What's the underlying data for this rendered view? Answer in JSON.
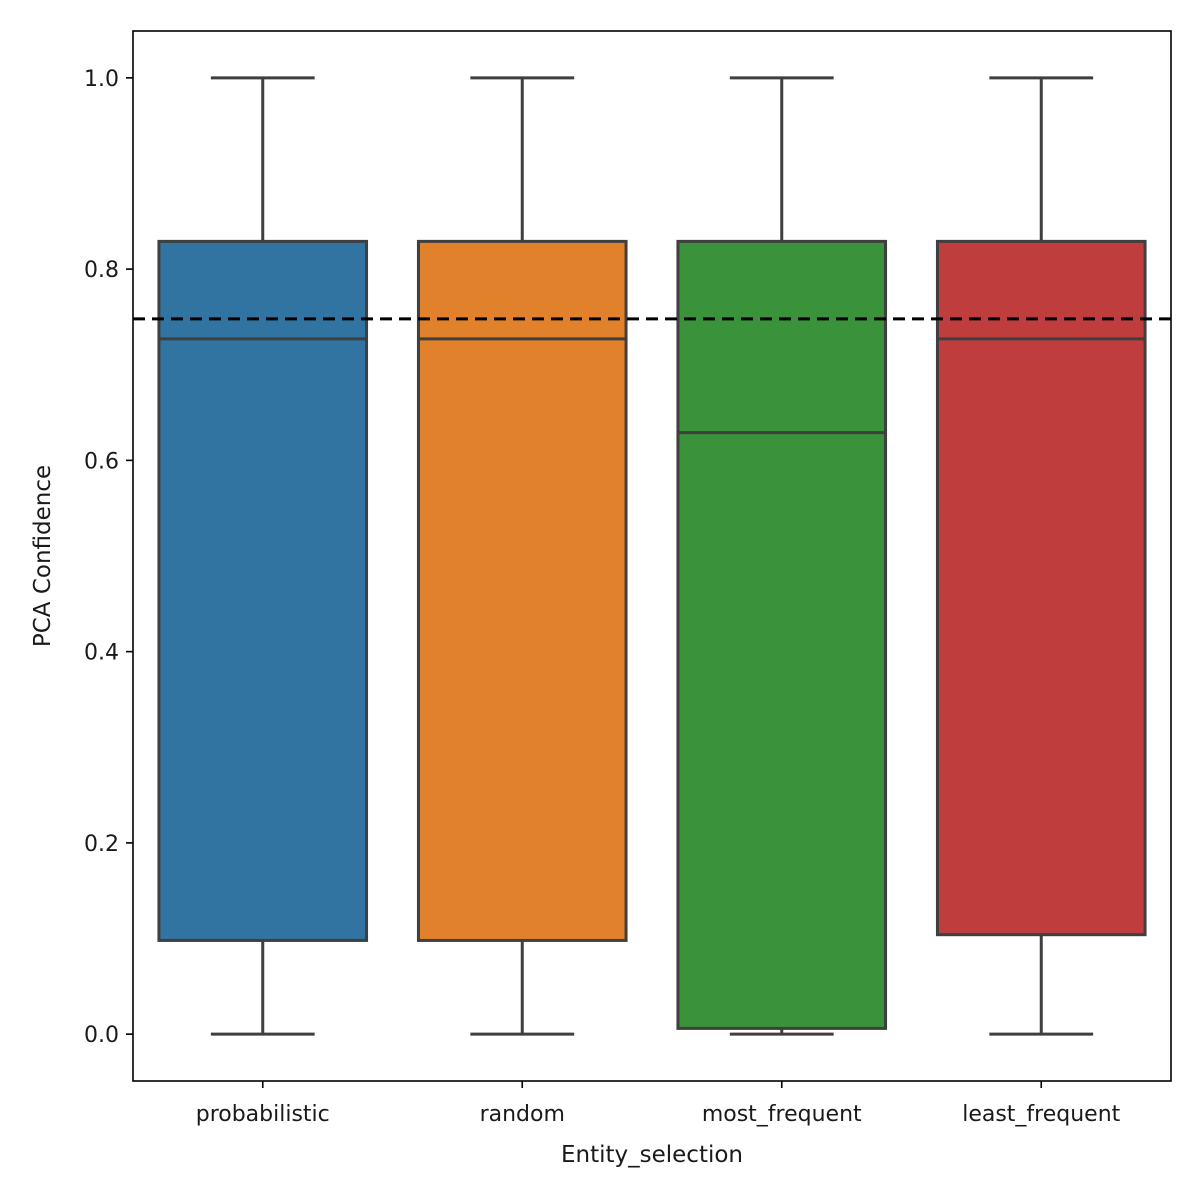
{
  "chart_data": {
    "type": "box",
    "title": "",
    "xlabel": "Entity_selection",
    "ylabel": "PCA Confidence",
    "categories": [
      "probabilistic",
      "random",
      "most_frequent",
      "least_frequent"
    ],
    "colors": [
      "#3274a1",
      "#e1812c",
      "#3a923a",
      "#c03d3e"
    ],
    "boxes": [
      {
        "name": "probabilistic",
        "whisker_low": 0.0,
        "q1": 0.098,
        "median": 0.727,
        "q3": 0.829,
        "whisker_high": 1.0
      },
      {
        "name": "random",
        "whisker_low": 0.0,
        "q1": 0.098,
        "median": 0.727,
        "q3": 0.829,
        "whisker_high": 1.0
      },
      {
        "name": "most_frequent",
        "whisker_low": 0.0,
        "q1": 0.006,
        "median": 0.629,
        "q3": 0.829,
        "whisker_high": 1.0
      },
      {
        "name": "least_frequent",
        "whisker_low": 0.0,
        "q1": 0.104,
        "median": 0.727,
        "q3": 0.829,
        "whisker_high": 1.0
      }
    ],
    "reference_line": {
      "y": 0.748,
      "style": "dashed",
      "color": "#000000"
    },
    "ylim": [
      -0.049,
      1.049
    ],
    "yticks": [
      0.0,
      0.2,
      0.4,
      0.6,
      0.8,
      1.0
    ],
    "ytick_labels": [
      "0.0",
      "0.2",
      "0.4",
      "0.6",
      "0.8",
      "1.0"
    ],
    "grid": false,
    "legend": "none"
  }
}
